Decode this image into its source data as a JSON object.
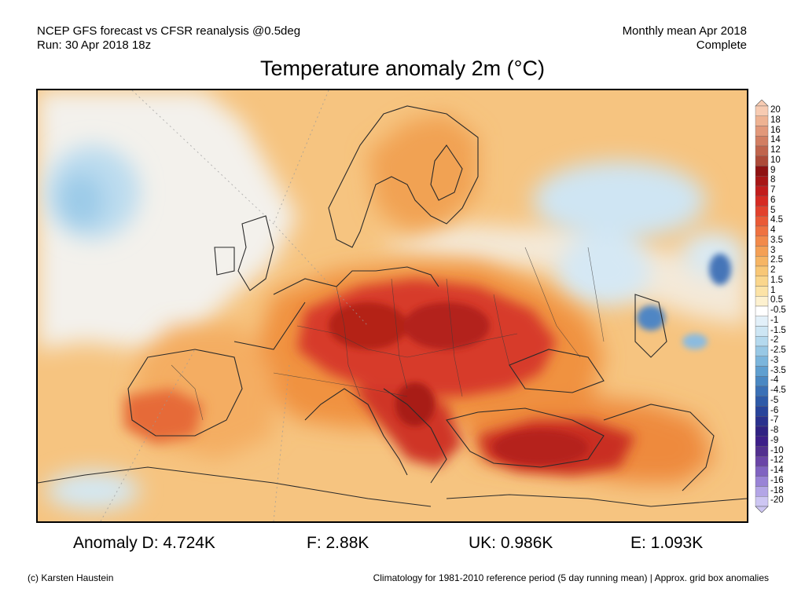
{
  "header": {
    "left_line1": "NCEP GFS forecast vs CFSR reanalysis @0.5deg",
    "left_line2": "Run: 30 Apr 2018 18z",
    "right_line1": "Monthly mean Apr 2018",
    "right_line2": "Complete"
  },
  "title": "Temperature anomaly 2m (°C)",
  "stats": {
    "d": "Anomaly D: 4.724K",
    "f": "F: 2.88K",
    "uk": "UK: 0.986K",
    "e": "E: 1.093K"
  },
  "footer": {
    "copyright": "(c) Karsten Haustein",
    "note": "Climatology for 1981-2010 reference period (5 day running mean) | Approx. grid box anomalies"
  },
  "colorbar": {
    "labels": [
      "20",
      "18",
      "16",
      "14",
      "12",
      "10",
      "9",
      "8",
      "7",
      "6",
      "5",
      "4.5",
      "4",
      "3.5",
      "3",
      "2.5",
      "2",
      "1.5",
      "1",
      "0.5",
      "-0.5",
      "-1",
      "-1.5",
      "-2",
      "-2.5",
      "-3",
      "-3.5",
      "-4",
      "-4.5",
      "-5",
      "-6",
      "-7",
      "-8",
      "-9",
      "-10",
      "-12",
      "-14",
      "-16",
      "-18",
      "-20"
    ],
    "colors": [
      "#f7cbb2",
      "#eeb292",
      "#e2987a",
      "#d27e62",
      "#c0644c",
      "#ad4a38",
      "#8f1212",
      "#a81616",
      "#c21c1c",
      "#d62a22",
      "#e2412c",
      "#ea5a36",
      "#ef7240",
      "#f28a4a",
      "#f4a055",
      "#f6b564",
      "#f8c776",
      "#fad68c",
      "#fce3a6",
      "#fdf1cf",
      "#ffffff",
      "#e2f0f9",
      "#cde6f4",
      "#b4d9ee",
      "#98c8e5",
      "#7bb5dc",
      "#5f9fd0",
      "#4a88c3",
      "#3a70b6",
      "#2e5aa8",
      "#28449b",
      "#2a318e",
      "#302283",
      "#3d1f89",
      "#52308f",
      "#6a45a7",
      "#8063c1",
      "#9983d6",
      "#b3a5e6",
      "#cdc6f3"
    ]
  },
  "map": {
    "legend_colors": {
      "ocean_neutral": "#f3f1ec",
      "mild_warm": "#f7c078",
      "warm": "#f2923f",
      "hot": "#d93a2a",
      "very_hot": "#b21e1a",
      "cool": "#bfdcef",
      "cold": "#3c6cb2"
    }
  }
}
